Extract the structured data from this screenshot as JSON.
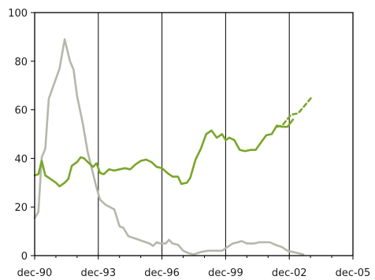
{
  "chart_data": {
    "type": "line",
    "title": "",
    "xlabel": "",
    "ylabel": "",
    "x_tick_labels": [
      "dec-90",
      "dec-93",
      "dec-96",
      "dec-99",
      "dec-02",
      "dec-05"
    ],
    "x_range": [
      1990.917,
      2005.917
    ],
    "ylim": [
      0,
      100
    ],
    "y_ticks": [
      0,
      20,
      40,
      60,
      80,
      100
    ],
    "grid": "vertical",
    "colors": {
      "green": "#7aa62a",
      "gray": "#b7b6aa",
      "frame": "#000000"
    },
    "series": [
      {
        "color": "#b7b6aa",
        "style": "solid",
        "points": [
          [
            1990.92,
            15.5
          ],
          [
            1991.09,
            18
          ],
          [
            1991.25,
            40.5
          ],
          [
            1991.42,
            44
          ],
          [
            1991.58,
            64.5
          ],
          [
            1992.09,
            77
          ],
          [
            1992.33,
            89
          ],
          [
            1992.58,
            80
          ],
          [
            1992.75,
            76.5
          ],
          [
            1992.92,
            65.5
          ],
          [
            1993.17,
            55
          ],
          [
            1993.42,
            42.5
          ],
          [
            1993.83,
            28
          ],
          [
            1994.0,
            23
          ],
          [
            1994.25,
            21
          ],
          [
            1994.67,
            19
          ],
          [
            1994.92,
            12
          ],
          [
            1995.09,
            11.5
          ],
          [
            1995.33,
            8
          ],
          [
            1995.67,
            7
          ],
          [
            1996.0,
            6
          ],
          [
            1996.33,
            5
          ],
          [
            1996.5,
            4
          ],
          [
            1996.67,
            5.5
          ],
          [
            1996.83,
            5
          ],
          [
            1997.09,
            5
          ],
          [
            1997.25,
            6.5
          ],
          [
            1997.42,
            5
          ],
          [
            1997.67,
            4.5
          ],
          [
            1997.92,
            2
          ],
          [
            1998.17,
            1
          ],
          [
            1998.42,
            0.5
          ],
          [
            1998.75,
            1.5
          ],
          [
            1999.09,
            2
          ],
          [
            1999.5,
            2
          ],
          [
            1999.75,
            2
          ],
          [
            2000.0,
            3.5
          ],
          [
            2000.25,
            5
          ],
          [
            2000.5,
            5.5
          ],
          [
            2000.67,
            6
          ],
          [
            2000.92,
            5
          ],
          [
            2001.25,
            5
          ],
          [
            2001.5,
            5.5
          ],
          [
            2001.75,
            5.5
          ],
          [
            2002.0,
            5.5
          ],
          [
            2002.25,
            4.5
          ],
          [
            2002.58,
            3.5
          ],
          [
            2002.83,
            2
          ],
          [
            2003.09,
            1.5
          ],
          [
            2003.33,
            1
          ],
          [
            2003.58,
            0.5
          ]
        ]
      },
      {
        "color": "#7aa62a",
        "style": "solid",
        "points": [
          [
            1990.92,
            33
          ],
          [
            1991.09,
            33.5
          ],
          [
            1991.25,
            39
          ],
          [
            1991.42,
            33
          ],
          [
            1991.67,
            31.5
          ],
          [
            1991.92,
            30
          ],
          [
            1992.09,
            28.5
          ],
          [
            1992.33,
            30
          ],
          [
            1992.5,
            31.5
          ],
          [
            1992.67,
            37
          ],
          [
            1992.92,
            38.5
          ],
          [
            1993.09,
            40.5
          ],
          [
            1993.25,
            40
          ],
          [
            1993.42,
            38.5
          ],
          [
            1993.67,
            36.5
          ],
          [
            1993.83,
            38
          ],
          [
            1994.0,
            34
          ],
          [
            1994.17,
            33.5
          ],
          [
            1994.42,
            35.5
          ],
          [
            1994.67,
            35
          ],
          [
            1994.92,
            35.5
          ],
          [
            1995.17,
            36
          ],
          [
            1995.42,
            35.5
          ],
          [
            1995.67,
            37.5
          ],
          [
            1995.92,
            39
          ],
          [
            1996.17,
            39.5
          ],
          [
            1996.42,
            38.5
          ],
          [
            1996.67,
            36.5
          ],
          [
            1996.92,
            36
          ],
          [
            1997.17,
            34
          ],
          [
            1997.42,
            32.5
          ],
          [
            1997.67,
            32.5
          ],
          [
            1997.83,
            29.5
          ],
          [
            1998.09,
            30
          ],
          [
            1998.25,
            32
          ],
          [
            1998.5,
            39.5
          ],
          [
            1998.75,
            44
          ],
          [
            1999.0,
            50
          ],
          [
            1999.25,
            51.5
          ],
          [
            1999.5,
            48.5
          ],
          [
            1999.75,
            50
          ],
          [
            1999.92,
            47.5
          ],
          [
            2000.09,
            48.5
          ],
          [
            2000.33,
            47.5
          ],
          [
            2000.58,
            43.5
          ],
          [
            2000.83,
            43
          ],
          [
            2001.09,
            43.5
          ],
          [
            2001.33,
            43.5
          ],
          [
            2001.58,
            46.5
          ],
          [
            2001.83,
            49.5
          ],
          [
            2002.09,
            50
          ],
          [
            2002.33,
            53.5
          ],
          [
            2002.58,
            53
          ],
          [
            2002.83,
            53
          ],
          [
            2003.09,
            56
          ]
        ]
      },
      {
        "color": "#7aa62a",
        "style": "dashed",
        "points": [
          [
            2002.33,
            53
          ],
          [
            2002.58,
            53.5
          ],
          [
            2003.0,
            58
          ],
          [
            2003.33,
            58.5
          ],
          [
            2003.67,
            62
          ],
          [
            2004.0,
            65.5
          ]
        ]
      }
    ]
  }
}
